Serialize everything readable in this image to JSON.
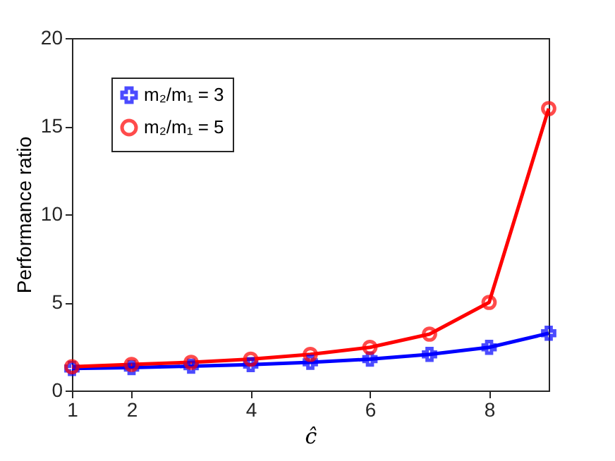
{
  "chart_data": {
    "type": "line",
    "xlabel": "ĉ",
    "ylabel": "Performance ratio",
    "x": [
      1,
      2,
      3,
      4,
      5,
      6,
      7,
      8,
      9
    ],
    "series": [
      {
        "name": "m₂/m₁ = 3",
        "color": "#0000ff",
        "marker": "cross",
        "values": [
          1.25,
          1.3,
          1.38,
          1.47,
          1.6,
          1.78,
          2.05,
          2.45,
          3.25
        ]
      },
      {
        "name": "m₂/m₁ = 5",
        "color": "#ff0000",
        "marker": "circle",
        "values": [
          1.35,
          1.48,
          1.6,
          1.78,
          2.05,
          2.45,
          3.2,
          5.0,
          16.0
        ]
      }
    ],
    "xlim": [
      1,
      9
    ],
    "xticks": [
      1,
      2,
      4,
      6,
      8
    ],
    "ylim": [
      0,
      20
    ],
    "yticks": [
      0,
      5,
      10,
      15,
      20
    ],
    "grid": false,
    "legend": "top left",
    "line_style": "solid"
  }
}
